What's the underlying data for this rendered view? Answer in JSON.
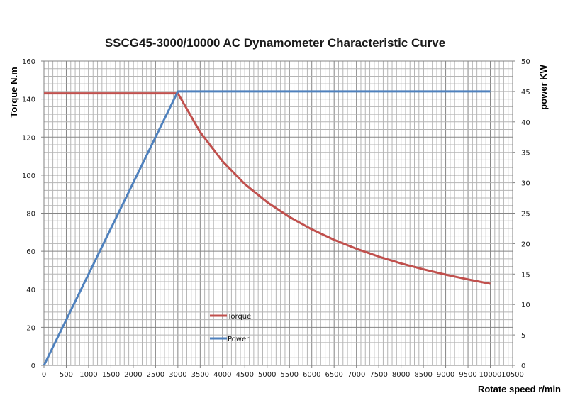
{
  "chart_data": {
    "type": "line",
    "title": "SSCG45-3000/10000 AC Dynamometer Characteristic Curve",
    "xlabel": "Rotate speed r/min",
    "ylabel": "Torque N.m",
    "y2label": "power KW",
    "xlim": [
      0,
      10500
    ],
    "ylim": [
      0,
      160
    ],
    "y2lim": [
      0,
      50
    ],
    "grid": true,
    "legend_position": "lower-left-inside",
    "x_ticks": [
      "0",
      "500",
      "1000",
      "1500",
      "2000",
      "2500",
      "3000",
      "3500",
      "4000",
      "4500",
      "5000",
      "5500",
      "6000",
      "6500",
      "7000",
      "7500",
      "8000",
      "8500",
      "9000",
      "9500",
      "10000",
      "10500"
    ],
    "y_ticks": [
      "0",
      "20",
      "40",
      "60",
      "80",
      "100",
      "120",
      "140",
      "160"
    ],
    "y2_ticks": [
      "0",
      "5",
      "10",
      "15",
      "20",
      "25",
      "30",
      "35",
      "40",
      "45",
      "50"
    ],
    "series": [
      {
        "name": "Torque",
        "axis": "left",
        "color": "#C0504D",
        "x": [
          0,
          500,
          1000,
          1500,
          2000,
          2500,
          3000,
          3500,
          4000,
          4500,
          5000,
          5500,
          6000,
          6500,
          7000,
          7500,
          8000,
          8500,
          9000,
          9500,
          10000
        ],
        "values": [
          143,
          143,
          143,
          143,
          143,
          143,
          143,
          122.6,
          107.3,
          95.3,
          85.8,
          78.0,
          71.5,
          66.0,
          61.3,
          57.2,
          53.6,
          50.5,
          47.7,
          45.2,
          42.9
        ]
      },
      {
        "name": "Power",
        "axis": "right",
        "color": "#4F81BD",
        "x": [
          0,
          500,
          1000,
          1500,
          2000,
          2500,
          3000,
          3500,
          4000,
          4500,
          5000,
          5500,
          6000,
          6500,
          7000,
          7500,
          8000,
          8500,
          9000,
          9500,
          10000
        ],
        "values": [
          0,
          7.5,
          15,
          22.5,
          30,
          37.5,
          45,
          45,
          45,
          45,
          45,
          45,
          45,
          45,
          45,
          45,
          45,
          45,
          45,
          45,
          45
        ]
      }
    ]
  }
}
